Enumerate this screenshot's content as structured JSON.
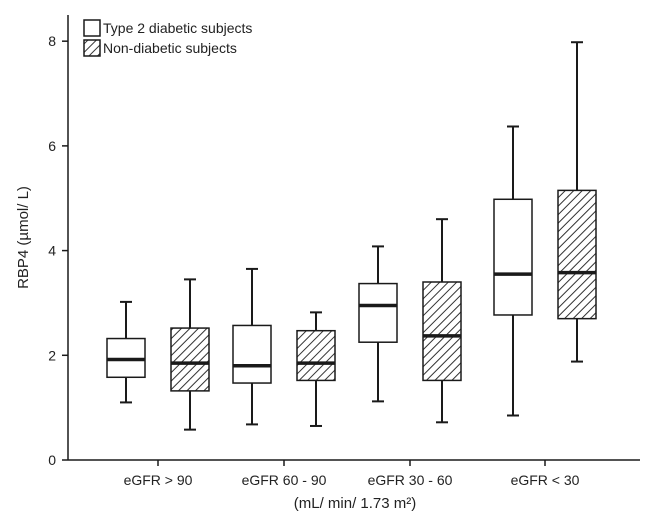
{
  "chart_data": {
    "type": "boxplot",
    "title": "",
    "ylabel": "RBP4 (µmol/ L)",
    "xlabel": "(mL/ min/ 1.73 m²)",
    "ylim": [
      0,
      8.5
    ],
    "yticks": [
      0,
      2,
      4,
      6,
      8
    ],
    "legend_position": "top-left",
    "grid": false,
    "categories": [
      "eGFR > 90",
      "eGFR 60 - 90",
      "eGFR 30 - 60",
      "eGFR < 30"
    ],
    "series": [
      {
        "name": "Type 2 diabetic subjects",
        "pattern": "solid-white",
        "boxes": [
          {
            "min": 1.1,
            "q1": 1.58,
            "median": 1.92,
            "q3": 2.32,
            "max": 3.02
          },
          {
            "min": 0.68,
            "q1": 1.47,
            "median": 1.8,
            "q3": 2.57,
            "max": 3.65
          },
          {
            "min": 1.12,
            "q1": 2.25,
            "median": 2.95,
            "q3": 3.37,
            "max": 4.08
          },
          {
            "min": 0.85,
            "q1": 2.77,
            "median": 3.55,
            "q3": 4.98,
            "max": 6.37
          }
        ]
      },
      {
        "name": "Non-diabetic subjects",
        "pattern": "diagonal-hatch",
        "boxes": [
          {
            "min": 0.58,
            "q1": 1.32,
            "median": 1.85,
            "q3": 2.52,
            "max": 3.45
          },
          {
            "min": 0.65,
            "q1": 1.52,
            "median": 1.85,
            "q3": 2.47,
            "max": 2.82
          },
          {
            "min": 0.72,
            "q1": 1.52,
            "median": 2.37,
            "q3": 3.4,
            "max": 4.6
          },
          {
            "min": 1.88,
            "q1": 2.7,
            "median": 3.58,
            "q3": 5.15,
            "max": 7.98
          }
        ]
      }
    ]
  },
  "colors": {
    "stroke": "#1a1a1a",
    "box_fill": "#ffffff",
    "hatch": "#333333"
  }
}
